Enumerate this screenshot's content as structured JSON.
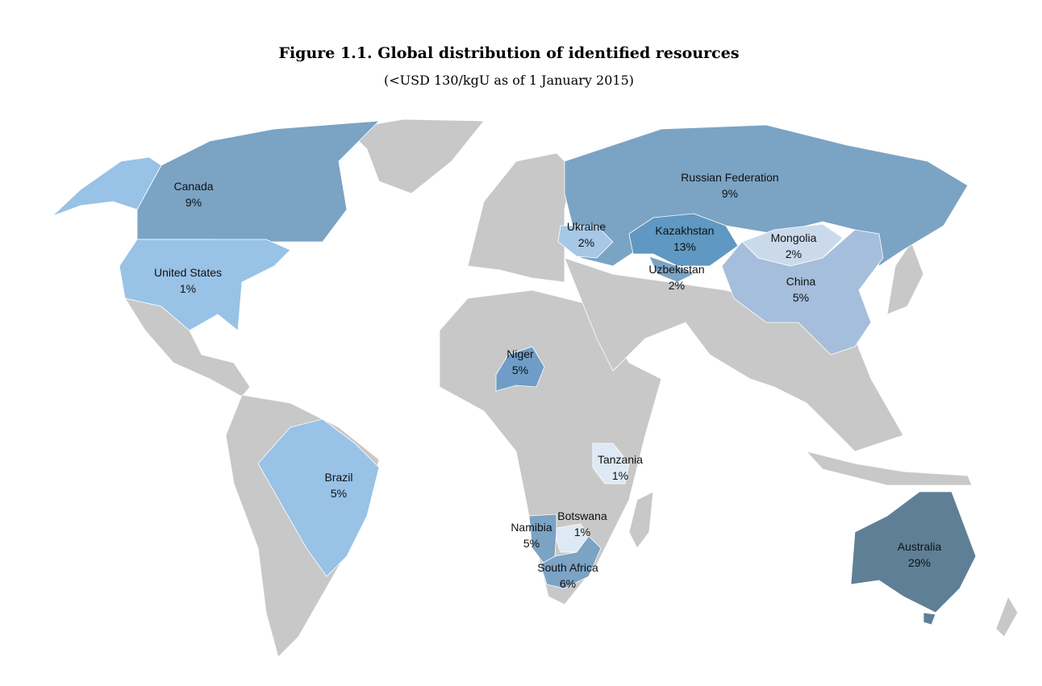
{
  "chart_data": {
    "type": "map",
    "title": "Figure 1.1. Global distribution of identified resources",
    "subtitle": "(<USD 130/kgU as of 1 January 2015)",
    "categories": [
      "Canada",
      "United States",
      "Russian Federation",
      "Ukraine",
      "Kazakhstan",
      "Mongolia",
      "Uzbekistan",
      "China",
      "Niger",
      "Tanzania",
      "Brazil",
      "Namibia",
      "Botswana",
      "South Africa",
      "Australia"
    ],
    "values": [
      9,
      1,
      9,
      2,
      13,
      2,
      2,
      5,
      5,
      1,
      5,
      5,
      1,
      6,
      29
    ],
    "value_labels": [
      "9%",
      "1%",
      "9%",
      "2%",
      "13%",
      "2%",
      "2%",
      "5%",
      "5%",
      "1%",
      "5%",
      "5%",
      "1%",
      "6%",
      "29%"
    ],
    "colors": [
      "#7ba3c4",
      "#98c2e6",
      "#7ba3c4",
      "#a6c7e6",
      "#5f98c2",
      "#cbdaeb",
      "#7ba3c4",
      "#a5bedb",
      "#6f9dc7",
      "#dde9f5",
      "#98c2e6",
      "#7ba3c4",
      "#dde9f5",
      "#7ba3c4",
      "#5f7f96"
    ]
  }
}
